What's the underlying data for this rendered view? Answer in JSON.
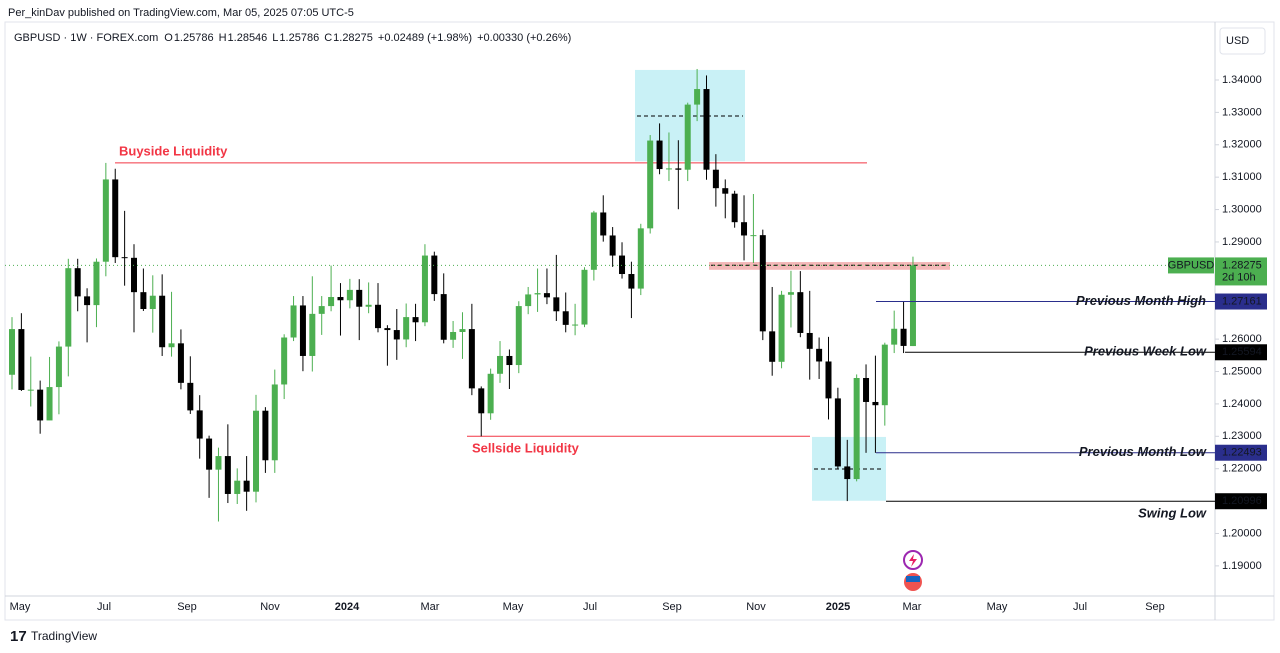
{
  "header": {
    "publisher": "Per_kinDav published on TradingView.com, Mar 05, 2025 07:05 UTC-5",
    "symbol": "GBPUSD · 1W · FOREX.com",
    "ohlc": [
      {
        "label": "O",
        "value": "1.25786"
      },
      {
        "label": "H",
        "value": "1.28546"
      },
      {
        "label": "L",
        "value": "1.25786"
      },
      {
        "label": "C",
        "value": "1.28275"
      }
    ],
    "change": "+0.02489 (+1.98%)",
    "change_extended": "+0.00330 (+0.26%)",
    "currency": "USD"
  },
  "footer": {
    "brand": "TradingView"
  },
  "chart_data": {
    "type": "candlestick",
    "time_labels": [
      "May",
      "Jul",
      "Sep",
      "Nov",
      "2024",
      "Mar",
      "May",
      "Jul",
      "Sep",
      "Nov",
      "2025",
      "Mar",
      "May",
      "Jul",
      "Sep"
    ],
    "series": [
      {
        "name": "GBPUSD",
        "up_color": "#4caf50",
        "down_color": "#000000",
        "open": [
          1.249,
          1.2631,
          1.2443,
          1.2444,
          1.2349,
          1.2452,
          1.2577,
          1.2819,
          1.2732,
          1.2705,
          1.2839,
          1.3093,
          1.2853,
          1.2851,
          1.2745,
          1.2693,
          1.2734,
          1.2575,
          1.2587,
          1.2465,
          1.238,
          1.2293,
          1.2197,
          1.2239,
          1.2122,
          1.2163,
          1.2129,
          1.2379,
          1.2226,
          1.246,
          1.2605,
          1.2704,
          1.2548,
          1.2678,
          1.2702,
          1.273,
          1.272,
          1.2752,
          1.27,
          1.2706,
          1.2634,
          1.2628,
          1.2599,
          1.2668,
          1.2652,
          1.2858,
          1.2739,
          1.2598,
          1.2622,
          1.2631,
          1.2448,
          1.2371,
          1.2493,
          1.2548,
          1.252,
          1.2702,
          1.2738,
          1.2742,
          1.2729,
          1.2686,
          1.2644,
          1.2645,
          1.2814,
          1.2991,
          1.292,
          1.2858,
          1.2801,
          1.2756,
          1.2942,
          1.3213,
          1.3125,
          1.3127,
          1.3123,
          1.3324,
          1.3372,
          1.3123,
          1.3066,
          1.3049,
          1.2961,
          1.292,
          1.2921,
          1.2624,
          1.253,
          1.2737,
          1.2745,
          1.2619,
          1.257,
          1.2531,
          1.2417,
          1.2207,
          1.2168,
          1.248,
          1.2406,
          1.2396,
          1.2583,
          1.2632,
          1.25786
        ],
        "high": [
          1.2668,
          1.268,
          1.2546,
          1.2472,
          1.2545,
          1.2593,
          1.2848,
          1.2848,
          1.2757,
          1.2849,
          1.3144,
          1.3126,
          1.2996,
          1.2893,
          1.2818,
          1.2797,
          1.28,
          1.2746,
          1.263,
          1.2547,
          1.2427,
          1.2302,
          1.2265,
          1.2337,
          1.2201,
          1.2239,
          1.2428,
          1.239,
          1.2506,
          1.2615,
          1.2733,
          1.2733,
          1.2794,
          1.2733,
          1.2827,
          1.2773,
          1.2786,
          1.2785,
          1.2775,
          1.2773,
          1.2643,
          1.2693,
          1.271,
          1.2709,
          1.2893,
          1.287,
          1.2803,
          1.2656,
          1.2683,
          1.2709,
          1.2454,
          1.2509,
          1.2594,
          1.2568,
          1.2717,
          1.2761,
          1.2818,
          1.2818,
          1.286,
          1.2744,
          1.2709,
          1.2822,
          1.2996,
          1.3044,
          1.2946,
          1.2899,
          1.2839,
          1.2956,
          1.323,
          1.3266,
          1.3238,
          1.3214,
          1.333,
          1.3434,
          1.3414,
          1.3171,
          1.3093,
          1.3058,
          1.3044,
          1.3048,
          1.2938,
          1.2761,
          1.2749,
          1.2811,
          1.281,
          1.2749,
          1.2605,
          1.2607,
          1.245,
          1.2289,
          1.2491,
          1.2522,
          1.2549,
          1.2589,
          1.2688,
          1.2715,
          1.28546
        ],
        "low": [
          1.2445,
          1.244,
          1.2392,
          1.2308,
          1.235,
          1.2368,
          1.2485,
          1.2686,
          1.259,
          1.2637,
          1.2794,
          1.2835,
          1.2765,
          1.2621,
          1.2687,
          1.262,
          1.2548,
          1.2546,
          1.2445,
          1.2369,
          1.2231,
          1.211,
          1.2037,
          1.2094,
          1.2091,
          1.207,
          1.2096,
          1.2187,
          1.2187,
          1.2415,
          1.2594,
          1.2501,
          1.25,
          1.2613,
          1.2686,
          1.2611,
          1.2695,
          1.2597,
          1.268,
          1.2621,
          1.2518,
          1.2536,
          1.2575,
          1.2594,
          1.264,
          1.2718,
          1.2587,
          1.2573,
          1.2539,
          1.2427,
          1.23,
          1.2351,
          1.2465,
          1.2446,
          1.2495,
          1.2677,
          1.2684,
          1.2708,
          1.2656,
          1.2621,
          1.2612,
          1.2637,
          1.2781,
          1.2901,
          1.2823,
          1.2787,
          1.2665,
          1.2736,
          1.2926,
          1.3109,
          1.3088,
          1.3001,
          1.3088,
          1.3273,
          1.3092,
          1.3009,
          1.2973,
          1.2944,
          1.2843,
          1.2835,
          1.2597,
          1.2487,
          1.251,
          1.2636,
          1.2606,
          1.2475,
          1.2477,
          1.2352,
          1.22,
          1.21,
          1.2161,
          1.2249,
          1.2249,
          1.2333,
          1.2557,
          1.2557,
          1.25786
        ],
        "close": [
          1.2631,
          1.2443,
          1.2444,
          1.2349,
          1.2452,
          1.2577,
          1.2819,
          1.2732,
          1.2705,
          1.2839,
          1.3093,
          1.2853,
          1.2851,
          1.2745,
          1.2693,
          1.2734,
          1.2575,
          1.2587,
          1.2465,
          1.238,
          1.2293,
          1.2197,
          1.2239,
          1.2122,
          1.2163,
          1.2129,
          1.2379,
          1.2226,
          1.246,
          1.2605,
          1.2704,
          1.2548,
          1.2678,
          1.2702,
          1.273,
          1.272,
          1.2752,
          1.27,
          1.2706,
          1.2634,
          1.2628,
          1.2599,
          1.2668,
          1.2652,
          1.2858,
          1.2739,
          1.2598,
          1.2622,
          1.2631,
          1.2448,
          1.2371,
          1.2493,
          1.2548,
          1.252,
          1.2702,
          1.2738,
          1.2742,
          1.2729,
          1.2686,
          1.2644,
          1.2645,
          1.2814,
          1.2991,
          1.292,
          1.2858,
          1.2801,
          1.2756,
          1.2942,
          1.3213,
          1.3125,
          1.3127,
          1.3123,
          1.3324,
          1.3372,
          1.3123,
          1.3066,
          1.3049,
          1.2961,
          1.292,
          1.2921,
          1.2624,
          1.253,
          1.2737,
          1.2745,
          1.2619,
          1.257,
          1.2531,
          1.2417,
          1.2207,
          1.2168,
          1.248,
          1.2406,
          1.2396,
          1.2583,
          1.2632,
          1.2579,
          1.28275
        ]
      }
    ],
    "last_price": {
      "countdown": "2d 10h",
      "color": "#4caf50"
    },
    "ylim": [
      1.1807,
      1.3579
    ],
    "yticks": [
      {
        "value": 1.19,
        "label": "1.19000"
      },
      {
        "value": 1.2,
        "label": "1.20000"
      },
      {
        "value": 1.21,
        "label": "1.21000"
      },
      {
        "value": 1.22,
        "label": "1.22000"
      },
      {
        "value": 1.23,
        "label": "1.23000"
      },
      {
        "value": 1.24,
        "label": "1.24000"
      },
      {
        "value": 1.25,
        "label": "1.25000"
      },
      {
        "value": 1.26,
        "label": "1.26000"
      },
      {
        "value": 1.27,
        "label": "1.27000"
      },
      {
        "value": 1.28,
        "label": "1.28000"
      },
      {
        "value": 1.29,
        "label": "1.29000"
      },
      {
        "value": 1.3,
        "label": "1.30000"
      },
      {
        "value": 1.31,
        "label": "1.31000"
      },
      {
        "value": 1.32,
        "label": "1.32000"
      },
      {
        "value": 1.33,
        "label": "1.33000"
      },
      {
        "value": 1.34,
        "label": "1.34000"
      }
    ],
    "grid": false,
    "liquidity": [
      {
        "text": "Buyside Liquidity",
        "value": 1.3144
      },
      {
        "text": "Sellside Liquidity",
        "value": 1.23
      }
    ],
    "zones": [
      {
        "from": 1.3149,
        "to": 1.3431,
        "mid": 1.3289,
        "color": "#b2ebf2"
      },
      {
        "from": 1.2101,
        "to": 1.2298,
        "mid": 1.2199,
        "color": "#b2ebf2"
      },
      {
        "from": 1.2814,
        "to": 1.2838,
        "mid": 1.2828,
        "color": "#ef9a9a"
      }
    ],
    "levels": [
      {
        "text": "Previous Month High",
        "value": 1.27161,
        "color": "#2a2e8c"
      },
      {
        "text": "Previous Week Low",
        "value": 1.25594,
        "color": "#000000"
      },
      {
        "text": "Previous Month Low",
        "value": 1.22493,
        "color": "#2a2e8c"
      },
      {
        "text": "Swing Low",
        "value": 1.20996,
        "color": "#000000"
      }
    ]
  }
}
